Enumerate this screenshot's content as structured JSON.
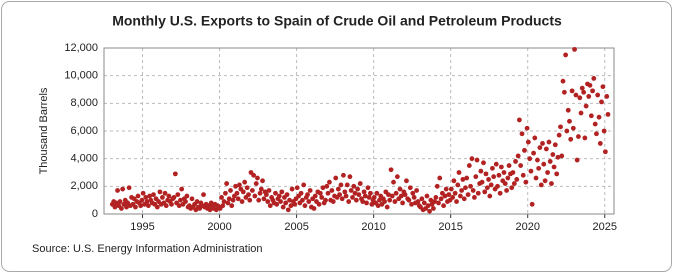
{
  "chart_data": {
    "type": "scatter",
    "title": "Monthly U.S. Exports to Spain of Crude Oil and Petroleum Products",
    "y_label": "Thousand Barrels",
    "source": "Source: U.S. Energy Information Administration",
    "color": "#b22222",
    "grid": true,
    "xlim": [
      1992.5,
      2025.6
    ],
    "xticks": [
      1995,
      2000,
      2005,
      2010,
      2015,
      2020,
      2025
    ],
    "ylim": [
      0,
      12000
    ],
    "yticks": [
      0,
      {
        "value": 2000,
        "label": "2,000"
      },
      {
        "value": 4000,
        "label": "4,000"
      },
      {
        "value": 6000,
        "label": "6,000"
      },
      {
        "value": 8000,
        "label": "8,000"
      },
      {
        "value": 10000,
        "label": "10,000"
      },
      {
        "value": 12000,
        "label": "12,000"
      }
    ],
    "x": [
      1993.04,
      1993.13,
      1993.21,
      1993.29,
      1993.38,
      1993.46,
      1993.54,
      1993.63,
      1993.71,
      1993.79,
      1993.88,
      1993.96,
      1994.04,
      1994.13,
      1994.21,
      1994.29,
      1994.38,
      1994.46,
      1994.54,
      1994.63,
      1994.71,
      1994.79,
      1994.88,
      1994.96,
      1995.04,
      1995.13,
      1995.21,
      1995.29,
      1995.38,
      1995.46,
      1995.54,
      1995.63,
      1995.71,
      1995.79,
      1995.88,
      1995.96,
      1996.04,
      1996.13,
      1996.21,
      1996.29,
      1996.38,
      1996.46,
      1996.54,
      1996.63,
      1996.71,
      1996.79,
      1996.88,
      1996.96,
      1997.04,
      1997.13,
      1997.21,
      1997.29,
      1997.38,
      1997.46,
      1997.54,
      1997.63,
      1997.71,
      1997.79,
      1997.88,
      1997.96,
      1998.04,
      1998.13,
      1998.21,
      1998.29,
      1998.38,
      1998.46,
      1998.54,
      1998.63,
      1998.71,
      1998.79,
      1998.88,
      1998.96,
      1999.04,
      1999.13,
      1999.21,
      1999.29,
      1999.38,
      1999.46,
      1999.54,
      1999.63,
      1999.71,
      1999.79,
      1999.88,
      1999.96,
      2000.04,
      2000.13,
      2000.21,
      2000.29,
      2000.38,
      2000.46,
      2000.54,
      2000.63,
      2000.71,
      2000.79,
      2000.88,
      2000.96,
      2001.04,
      2001.13,
      2001.21,
      2001.29,
      2001.38,
      2001.46,
      2001.54,
      2001.63,
      2001.71,
      2001.79,
      2001.88,
      2001.96,
      2002.04,
      2002.13,
      2002.21,
      2002.29,
      2002.38,
      2002.46,
      2002.54,
      2002.63,
      2002.71,
      2002.79,
      2002.88,
      2002.96,
      2003.04,
      2003.13,
      2003.21,
      2003.29,
      2003.38,
      2003.46,
      2003.54,
      2003.63,
      2003.71,
      2003.79,
      2003.88,
      2003.96,
      2004.04,
      2004.13,
      2004.21,
      2004.29,
      2004.38,
      2004.46,
      2004.54,
      2004.63,
      2004.71,
      2004.79,
      2004.88,
      2004.96,
      2005.04,
      2005.13,
      2005.21,
      2005.29,
      2005.38,
      2005.46,
      2005.54,
      2005.63,
      2005.71,
      2005.79,
      2005.88,
      2005.96,
      2006.04,
      2006.13,
      2006.21,
      2006.29,
      2006.38,
      2006.46,
      2006.54,
      2006.63,
      2006.71,
      2006.79,
      2006.88,
      2006.96,
      2007.04,
      2007.13,
      2007.21,
      2007.29,
      2007.38,
      2007.46,
      2007.54,
      2007.63,
      2007.71,
      2007.79,
      2007.88,
      2007.96,
      2008.04,
      2008.13,
      2008.21,
      2008.29,
      2008.38,
      2008.46,
      2008.54,
      2008.63,
      2008.71,
      2008.79,
      2008.88,
      2008.96,
      2009.04,
      2009.13,
      2009.21,
      2009.29,
      2009.38,
      2009.46,
      2009.54,
      2009.63,
      2009.71,
      2009.79,
      2009.88,
      2009.96,
      2010.04,
      2010.13,
      2010.21,
      2010.29,
      2010.38,
      2010.46,
      2010.54,
      2010.63,
      2010.71,
      2010.79,
      2010.88,
      2010.96,
      2011.04,
      2011.13,
      2011.21,
      2011.29,
      2011.38,
      2011.46,
      2011.54,
      2011.63,
      2011.71,
      2011.79,
      2011.88,
      2011.96,
      2012.04,
      2012.13,
      2012.21,
      2012.29,
      2012.38,
      2012.46,
      2012.54,
      2012.63,
      2012.71,
      2012.79,
      2012.88,
      2012.96,
      2013.04,
      2013.13,
      2013.21,
      2013.29,
      2013.38,
      2013.46,
      2013.54,
      2013.63,
      2013.71,
      2013.79,
      2013.88,
      2013.96,
      2014.04,
      2014.13,
      2014.21,
      2014.29,
      2014.38,
      2014.46,
      2014.54,
      2014.63,
      2014.71,
      2014.79,
      2014.88,
      2014.96,
      2015.04,
      2015.13,
      2015.21,
      2015.29,
      2015.38,
      2015.46,
      2015.54,
      2015.63,
      2015.71,
      2015.79,
      2015.88,
      2015.96,
      2016.04,
      2016.13,
      2016.21,
      2016.29,
      2016.38,
      2016.46,
      2016.54,
      2016.63,
      2016.71,
      2016.79,
      2016.88,
      2016.96,
      2017.04,
      2017.13,
      2017.21,
      2017.29,
      2017.38,
      2017.46,
      2017.54,
      2017.63,
      2017.71,
      2017.79,
      2017.88,
      2017.96,
      2018.04,
      2018.13,
      2018.21,
      2018.29,
      2018.38,
      2018.46,
      2018.54,
      2018.63,
      2018.71,
      2018.79,
      2018.88,
      2018.96,
      2019.04,
      2019.13,
      2019.21,
      2019.29,
      2019.38,
      2019.46,
      2019.54,
      2019.63,
      2019.71,
      2019.79,
      2019.88,
      2019.96,
      2020.04,
      2020.13,
      2020.21,
      2020.29,
      2020.38,
      2020.46,
      2020.54,
      2020.63,
      2020.71,
      2020.79,
      2020.88,
      2020.96,
      2021.04,
      2021.13,
      2021.21,
      2021.29,
      2021.38,
      2021.46,
      2021.54,
      2021.63,
      2021.71,
      2021.79,
      2021.88,
      2021.96,
      2022.04,
      2022.13,
      2022.21,
      2022.29,
      2022.38,
      2022.46,
      2022.54,
      2022.63,
      2022.71,
      2022.79,
      2022.88,
      2022.96,
      2023.04,
      2023.13,
      2023.21,
      2023.29,
      2023.38,
      2023.46,
      2023.54,
      2023.63,
      2023.71,
      2023.79,
      2023.88,
      2023.96,
      2024.04,
      2024.13,
      2024.21,
      2024.29,
      2024.38,
      2024.46,
      2024.54,
      2024.63,
      2024.71,
      2024.79,
      2024.88,
      2024.96,
      2025.04,
      2025.13,
      2025.21
    ],
    "values": [
      700,
      900,
      500,
      800,
      1700,
      600,
      900,
      400,
      1800,
      700,
      1000,
      500,
      800,
      1900,
      600,
      1200,
      700,
      1100,
      500,
      900,
      1300,
      800,
      600,
      1000,
      1500,
      700,
      1200,
      900,
      600,
      1300,
      1000,
      800,
      1400,
      700,
      1100,
      500,
      900,
      1600,
      700,
      1200,
      800,
      1500,
      600,
      1000,
      1300,
      900,
      700,
      1100,
      1200,
      2900,
      800,
      1400,
      600,
      1000,
      1800,
      700,
      1100,
      900,
      1300,
      500,
      600,
      400,
      1100,
      500,
      700,
      300,
      900,
      500,
      400,
      800,
      600,
      1400,
      500,
      700,
      400,
      600,
      300,
      800,
      500,
      400,
      700,
      300,
      600,
      500,
      400,
      1200,
      600,
      900,
      1500,
      2200,
      800,
      1100,
      1700,
      600,
      1000,
      1300,
      2000,
      1500,
      1100,
      2100,
      1800,
      900,
      1600,
      2300,
      1200,
      1900,
      1400,
      1000,
      3000,
      1700,
      2800,
      1300,
      2200,
      2600,
      1000,
      1500,
      1800,
      2400,
      1100,
      1600,
      1400,
      900,
      1700,
      600,
      1200,
      1000,
      800,
      1500,
      700,
      1100,
      1300,
      900,
      1600,
      500,
      1200,
      800,
      1400,
      300,
      1000,
      600,
      1800,
      900,
      700,
      1100,
      1900,
      1300,
      800,
      1500,
      1000,
      2100,
      600,
      1200,
      1400,
      900,
      1700,
      500,
      1100,
      400,
      1300,
      900,
      1600,
      700,
      1500,
      1200,
      1900,
      800,
      1000,
      2000,
      1500,
      2300,
      1000,
      1700,
      900,
      1300,
      2600,
      1200,
      1800,
      1400,
      2100,
      1100,
      2800,
      1600,
      1300,
      2100,
      900,
      2700,
      1700,
      1200,
      2000,
      1500,
      1000,
      1800,
      1400,
      2200,
      1100,
      900,
      1600,
      1300,
      800,
      1900,
      1200,
      1500,
      700,
      1000,
      1200,
      800,
      1500,
      600,
      1000,
      1300,
      700,
      1100,
      900,
      1600,
      500,
      1400,
      1000,
      3200,
      1300,
      2300,
      900,
      1500,
      2700,
      1100,
      1800,
      1300,
      800,
      1600,
      1400,
      2400,
      1100,
      1000,
      1900,
      700,
      1500,
      1200,
      800,
      1700,
      900,
      600,
      500,
      1100,
      300,
      800,
      400,
      1300,
      600,
      200,
      1000,
      700,
      400,
      900,
      1200,
      2000,
      800,
      2600,
      1100,
      1500,
      600,
      1300,
      1800,
      900,
      1400,
      1000,
      1800,
      1200,
      2400,
      1500,
      900,
      2100,
      3000,
      1300,
      1700,
      2500,
      1100,
      1900,
      2600,
      1400,
      3500,
      2000,
      4000,
      1700,
      1200,
      2700,
      3900,
      1500,
      2200,
      3100,
      2300,
      3700,
      1600,
      2900,
      1900,
      2500,
      1300,
      2100,
      3300,
      2700,
      1800,
      3600,
      2000,
      2800,
      1500,
      3400,
      2400,
      3000,
      2200,
      1700,
      2600,
      3500,
      2900,
      1900,
      3000,
      2200,
      3800,
      2500,
      4200,
      6800,
      3500,
      5800,
      2800,
      4600,
      2300,
      6200,
      5200,
      4000,
      3100,
      700,
      4400,
      5500,
      2600,
      3900,
      3300,
      4800,
      2100,
      5100,
      3600,
      2400,
      4700,
      3000,
      5200,
      3800,
      2200,
      4300,
      3400,
      5000,
      2900,
      4100,
      5700,
      6300,
      4200,
      9600,
      8800,
      11500,
      6000,
      7500,
      6700,
      5400,
      8900,
      6200,
      11900,
      8600,
      3900,
      5600,
      8400,
      7300,
      9100,
      8800,
      5500,
      7800,
      9400,
      8500,
      9300,
      7100,
      8900,
      9800,
      6500,
      5800,
      8600,
      7000,
      5100,
      8100,
      9200,
      6000,
      4500,
      8500,
      7200
    ]
  }
}
